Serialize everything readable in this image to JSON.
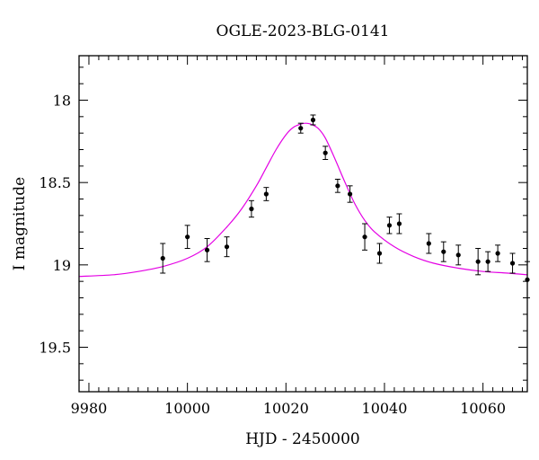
{
  "chart_data": {
    "type": "scatter",
    "title": "OGLE-2023-BLG-0141",
    "xlabel": "HJD - 2450000",
    "ylabel": "I magnitude",
    "xlim": [
      9978,
      10069
    ],
    "ylim": [
      19.77,
      17.73
    ],
    "y_inverted": true,
    "grid": false,
    "x_ticks": [
      9980,
      10000,
      10020,
      10040,
      10060
    ],
    "x_tick_labels": [
      "9980",
      "10000",
      "10020",
      "10040",
      "10060"
    ],
    "x_minor_step": 2,
    "y_ticks": [
      18,
      18.5,
      19,
      19.5
    ],
    "y_tick_labels": [
      "18",
      "18.5",
      "19",
      "19.5"
    ],
    "y_minor_step": 0.1,
    "colors": {
      "data": "#000000",
      "model": "#e400e4"
    },
    "series": [
      {
        "kind": "data_with_errors",
        "points": [
          {
            "x": 9995.0,
            "y": 18.96,
            "err": 0.09
          },
          {
            "x": 10000.0,
            "y": 18.83,
            "err": 0.07
          },
          {
            "x": 10004.0,
            "y": 18.91,
            "err": 0.07
          },
          {
            "x": 10008.0,
            "y": 18.89,
            "err": 0.06
          },
          {
            "x": 10013.0,
            "y": 18.66,
            "err": 0.05
          },
          {
            "x": 10016.0,
            "y": 18.57,
            "err": 0.04
          },
          {
            "x": 10023.0,
            "y": 18.17,
            "err": 0.03
          },
          {
            "x": 10025.5,
            "y": 18.12,
            "err": 0.03
          },
          {
            "x": 10028.0,
            "y": 18.32,
            "err": 0.04
          },
          {
            "x": 10030.5,
            "y": 18.52,
            "err": 0.04
          },
          {
            "x": 10033.0,
            "y": 18.57,
            "err": 0.05
          },
          {
            "x": 10036.0,
            "y": 18.83,
            "err": 0.08
          },
          {
            "x": 10039.0,
            "y": 18.93,
            "err": 0.06
          },
          {
            "x": 10041.0,
            "y": 18.76,
            "err": 0.05
          },
          {
            "x": 10043.0,
            "y": 18.75,
            "err": 0.06
          },
          {
            "x": 10049.0,
            "y": 18.87,
            "err": 0.06
          },
          {
            "x": 10052.0,
            "y": 18.92,
            "err": 0.06
          },
          {
            "x": 10055.0,
            "y": 18.94,
            "err": 0.06
          },
          {
            "x": 10059.0,
            "y": 18.98,
            "err": 0.08
          },
          {
            "x": 10061.0,
            "y": 18.98,
            "err": 0.06
          },
          {
            "x": 10063.0,
            "y": 18.93,
            "err": 0.05
          },
          {
            "x": 10066.0,
            "y": 18.99,
            "err": 0.06
          },
          {
            "x": 10069.0,
            "y": 19.09,
            "err": 0.11
          }
        ]
      },
      {
        "kind": "model_curve",
        "x": [
          9978,
          9985,
          9990,
          9995,
          10000,
          10004,
          10008,
          10011,
          10014,
          10016,
          10018,
          10020,
          10021.5,
          10023,
          10024,
          10025,
          10026.5,
          10028,
          10030,
          10032,
          10034,
          10036,
          10038,
          10042,
          10046,
          10050,
          10055,
          10060,
          10065,
          10069
        ],
        "y": [
          19.07,
          19.06,
          19.04,
          19.01,
          18.96,
          18.89,
          18.77,
          18.66,
          18.52,
          18.41,
          18.3,
          18.21,
          18.165,
          18.145,
          18.14,
          18.145,
          18.17,
          18.23,
          18.36,
          18.5,
          18.63,
          18.73,
          18.8,
          18.89,
          18.95,
          18.99,
          19.02,
          19.04,
          19.05,
          19.06
        ]
      }
    ]
  }
}
